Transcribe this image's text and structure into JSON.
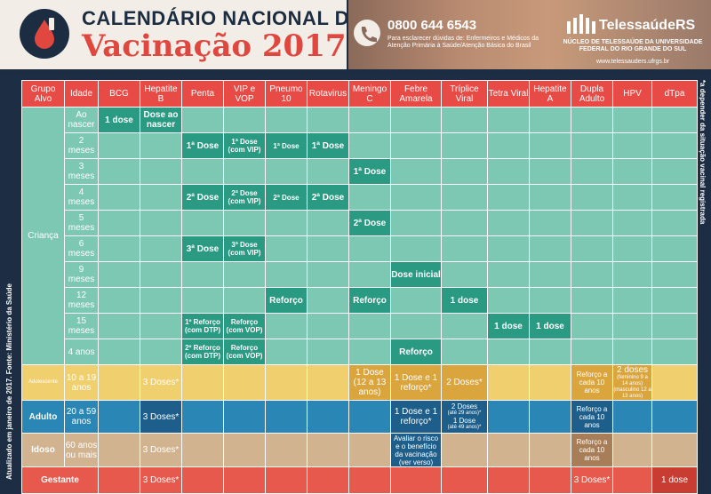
{
  "header": {
    "title_line1": "CALENDÁRIO NACIONAL DE",
    "title_line2": "Vacinação 2017",
    "phone": "0800 644 6543",
    "phone_sub": "Para esclarecer dúvidas de: Enfermeiros e Médicos da Atenção Primária à Saúde/Atenção Básica do Brasil",
    "org_name": "TelessaúdeRS",
    "org_sub": "NÚCLEO DE TELESSAÚDE DA UNIVERSIDADE FEDERAL DO RIO GRANDE DO SUL",
    "org_url": "www.telessauders.ufrgs.br"
  },
  "side_left": "Atualizado em janeiro de 2017. Fonte: Ministério da Saúde",
  "side_right": "*a depender da situação vacinal registrada",
  "columns": [
    "Grupo Alvo",
    "Idade",
    "BCG",
    "Hepatite B",
    "Penta",
    "VIP e VOP",
    "Pneumo 10",
    "Rotavirus",
    "Meningo C",
    "Febre Amarela",
    "Tríplice Viral",
    "Tetra Viral",
    "Hepatite A",
    "Dupla Adulto",
    "HPV",
    "dTpa"
  ],
  "groups": {
    "crianca": "Criança",
    "adolescente": "Adolescente",
    "adulto": "Adulto",
    "idoso": "Idoso",
    "gestante": "Gestante"
  },
  "rows": {
    "r1": {
      "age": "Ao nascer",
      "bcg": "1 dose",
      "hepb": "Dose ao nascer"
    },
    "r2": {
      "age": "2 meses",
      "penta": "1ª Dose",
      "vip": "1ª Dose (com VIP)",
      "pneumo": "1ª Dose",
      "rota": "1ª Dose"
    },
    "r3": {
      "age": "3 meses",
      "meningo": "1ª Dose"
    },
    "r4": {
      "age": "4 meses",
      "penta": "2ª Dose",
      "vip": "2ª Dose (com VIP)",
      "pneumo": "2ª Dose",
      "rota": "2ª Dose"
    },
    "r5": {
      "age": "5 meses",
      "meningo": "2ª Dose"
    },
    "r6": {
      "age": "6 meses",
      "penta": "3ª Dose",
      "vip": "3ª Dose (com VIP)"
    },
    "r7": {
      "age": "9 meses",
      "febre": "Dose inicial"
    },
    "r8": {
      "age": "12 meses",
      "pneumo": "Reforço",
      "meningo": "Reforço",
      "triplice": "1 dose"
    },
    "r9": {
      "age": "15 meses",
      "penta": "1º Reforço (com DTP)",
      "vip": "Reforço (com VOP)",
      "tetra": "1 dose",
      "hepa": "1 dose"
    },
    "r10": {
      "age": "4 anos",
      "penta": "2º Reforço (com DTP)",
      "vip": "Reforço (com VOP)",
      "febre": "Reforço"
    },
    "ado": {
      "age": "10 a 19 anos",
      "hepb": "3 Doses*",
      "meningo": "1 Dose (12 a 13 anos)",
      "febre": "1 Dose e 1 reforço*",
      "triplice": "2 Doses*",
      "dupla": "Reforço a cada 10 anos",
      "hpv": "2 doses",
      "hpv_sub": "(feminino 9 a 14 anos) (masculino 12 a 13 anos)"
    },
    "adu": {
      "age": "20 a 59 anos",
      "hepb": "3 Doses*",
      "febre": "1 Dose e 1 reforço*",
      "triplice_a": "2 Doses",
      "triplice_a_sub": "(até 29 anos)*",
      "triplice_b": "1 Dose",
      "triplice_b_sub": "(até 49 anos)*",
      "dupla": "Reforço a cada 10 anos"
    },
    "ido": {
      "age": "60 anos ou mais",
      "hepb": "3 Doses*",
      "febre": "Avaliar o risco e o benefício da vacinação (ver verso)",
      "dupla": "Reforço a cada 10 anos"
    },
    "ges": {
      "hepb": "3 Doses*",
      "dupla": "3 Doses*",
      "dtpa": "1 dose"
    }
  }
}
